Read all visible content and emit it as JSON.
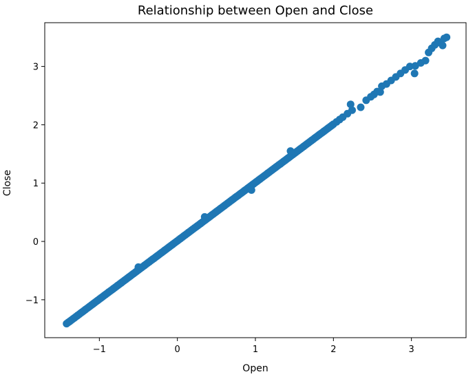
{
  "chart_data": {
    "type": "scatter",
    "title": "Relationship between Open and Close",
    "xlabel": "Open",
    "ylabel": "Close",
    "xlim": [
      -1.7,
      3.7
    ],
    "ylim": [
      -1.65,
      3.75
    ],
    "xticks": [
      -1,
      0,
      1,
      2,
      3
    ],
    "yticks": [
      -1,
      0,
      1,
      2,
      3
    ],
    "xtick_labels": [
      "−1",
      "0",
      "1",
      "2",
      "3"
    ],
    "ytick_labels": [
      "−1",
      "0",
      "1",
      "2",
      "3"
    ],
    "grid": false,
    "marker_color": "#1f77b4",
    "series": [
      {
        "x": [
          -1.42,
          -1.4,
          -1.38,
          -1.36,
          -1.34,
          -1.32,
          -1.3,
          -1.28,
          -1.26,
          -1.24,
          -1.22,
          -1.2,
          -1.18,
          -1.16,
          -1.14,
          -1.12,
          -1.1,
          -1.08,
          -1.06,
          -1.04,
          -1.02,
          -1.0,
          -0.98,
          -0.96,
          -0.94,
          -0.92,
          -0.9,
          -0.88,
          -0.86,
          -0.84,
          -0.82,
          -0.8,
          -0.78,
          -0.76,
          -0.74,
          -0.72,
          -0.7,
          -0.68,
          -0.66,
          -0.64,
          -0.62,
          -0.6,
          -0.58,
          -0.56,
          -0.54,
          -0.52,
          -0.5,
          -0.48,
          -0.46,
          -0.44,
          -0.42,
          -0.4,
          -0.38,
          -0.36,
          -0.34,
          -0.32,
          -0.3,
          -0.28,
          -0.26,
          -0.24,
          -0.22,
          -0.2,
          -0.18,
          -0.16,
          -0.14,
          -0.12,
          -0.1,
          -0.08,
          -0.06,
          -0.04,
          -0.02,
          0.0,
          0.02,
          0.04,
          0.06,
          0.08,
          0.1,
          0.12,
          0.14,
          0.16,
          0.18,
          0.2,
          0.22,
          0.24,
          0.26,
          0.28,
          0.3,
          0.32,
          0.34,
          0.36,
          0.38,
          0.4,
          0.42,
          0.44,
          0.46,
          0.48,
          0.5,
          0.52,
          0.54,
          0.56,
          0.58,
          0.6,
          0.62,
          0.64,
          0.66,
          0.68,
          0.7,
          0.72,
          0.74,
          0.76,
          0.78,
          0.8,
          0.82,
          0.84,
          0.86,
          0.88,
          0.9,
          0.92,
          0.94,
          0.96,
          0.98,
          1.0,
          1.02,
          1.04,
          1.06,
          1.08,
          1.1,
          1.12,
          1.14,
          1.16,
          1.18,
          1.2,
          1.22,
          1.24,
          1.26,
          1.28,
          1.3,
          1.32,
          1.34,
          1.36,
          1.38,
          1.4,
          1.42,
          1.44,
          1.46,
          1.48,
          1.5,
          1.52,
          1.54,
          1.56,
          1.58,
          1.6,
          1.62,
          1.64,
          1.66,
          1.68,
          1.7,
          1.72,
          1.74,
          1.76,
          1.78,
          1.8,
          1.82,
          1.84,
          1.86,
          1.88,
          1.9,
          1.92,
          1.94,
          1.96,
          1.98,
          2.0,
          2.04,
          2.08,
          2.12,
          2.18,
          2.24,
          2.35,
          2.42,
          2.48,
          2.52,
          2.56,
          2.62,
          2.68,
          2.74,
          2.8,
          2.86,
          2.92,
          2.98,
          3.04,
          3.12,
          3.18,
          3.22,
          3.26,
          3.3,
          3.34,
          3.38,
          3.42,
          3.45,
          -0.5,
          0.35,
          0.95,
          1.45,
          2.22,
          2.6,
          3.05,
          3.4
        ],
        "y": [
          -1.41,
          -1.39,
          -1.37,
          -1.35,
          -1.33,
          -1.31,
          -1.29,
          -1.27,
          -1.25,
          -1.23,
          -1.21,
          -1.19,
          -1.17,
          -1.15,
          -1.13,
          -1.11,
          -1.09,
          -1.07,
          -1.05,
          -1.03,
          -1.01,
          -0.99,
          -0.97,
          -0.95,
          -0.93,
          -0.91,
          -0.89,
          -0.87,
          -0.85,
          -0.83,
          -0.81,
          -0.79,
          -0.77,
          -0.75,
          -0.73,
          -0.71,
          -0.69,
          -0.67,
          -0.65,
          -0.63,
          -0.61,
          -0.59,
          -0.57,
          -0.55,
          -0.53,
          -0.51,
          -0.49,
          -0.47,
          -0.45,
          -0.43,
          -0.41,
          -0.39,
          -0.37,
          -0.35,
          -0.33,
          -0.31,
          -0.29,
          -0.27,
          -0.25,
          -0.23,
          -0.21,
          -0.19,
          -0.17,
          -0.15,
          -0.13,
          -0.11,
          -0.09,
          -0.07,
          -0.05,
          -0.03,
          -0.01,
          0.01,
          0.03,
          0.05,
          0.07,
          0.09,
          0.11,
          0.13,
          0.15,
          0.17,
          0.19,
          0.21,
          0.23,
          0.25,
          0.27,
          0.29,
          0.31,
          0.33,
          0.35,
          0.37,
          0.39,
          0.41,
          0.43,
          0.45,
          0.47,
          0.49,
          0.51,
          0.53,
          0.55,
          0.57,
          0.59,
          0.61,
          0.63,
          0.65,
          0.67,
          0.69,
          0.71,
          0.73,
          0.75,
          0.77,
          0.79,
          0.81,
          0.83,
          0.85,
          0.87,
          0.89,
          0.91,
          0.93,
          0.95,
          0.97,
          0.99,
          1.01,
          1.03,
          1.05,
          1.07,
          1.09,
          1.11,
          1.13,
          1.15,
          1.17,
          1.19,
          1.21,
          1.23,
          1.25,
          1.27,
          1.29,
          1.31,
          1.33,
          1.35,
          1.37,
          1.39,
          1.41,
          1.43,
          1.45,
          1.47,
          1.49,
          1.51,
          1.53,
          1.55,
          1.57,
          1.59,
          1.61,
          1.63,
          1.65,
          1.67,
          1.69,
          1.71,
          1.73,
          1.75,
          1.77,
          1.79,
          1.81,
          1.83,
          1.85,
          1.87,
          1.89,
          1.91,
          1.93,
          1.95,
          1.97,
          1.99,
          2.01,
          2.05,
          2.09,
          2.13,
          2.19,
          2.25,
          2.3,
          2.42,
          2.48,
          2.52,
          2.57,
          2.66,
          2.7,
          2.76,
          2.82,
          2.88,
          2.94,
          3.0,
          2.88,
          3.06,
          3.1,
          3.24,
          3.31,
          3.37,
          3.43,
          3.4,
          3.48,
          3.5,
          -0.44,
          0.42,
          0.88,
          1.55,
          2.35,
          2.56,
          3.01,
          3.36
        ]
      }
    ]
  }
}
